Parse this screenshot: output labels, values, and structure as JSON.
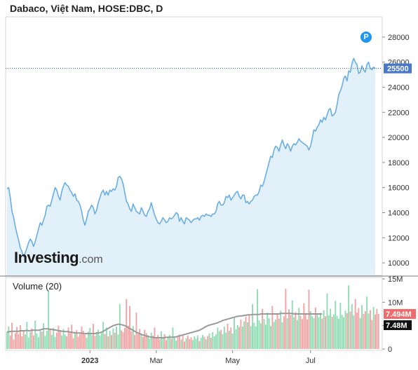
{
  "header": {
    "title": "Dabaco, Việt Nam, HOSE:DBC, D",
    "volume_label": "Volume (20)",
    "badge": "P",
    "logo_main": "Investing",
    "logo_suffix": ".com"
  },
  "colors": {
    "price_line": "#6aaee3",
    "price_fill": "#e2f0fa",
    "last_price_tag": "#4a78c9",
    "volume_up": "#8fdcb4",
    "volume_down": "#f2a3a3",
    "volume_ma": "#9a9a9a",
    "volume_tag_up": "#f06c6c",
    "volume_tag_ma": "#111111"
  },
  "chart_data": [
    {
      "type": "area",
      "name": "price",
      "y_ticks": [
        "28000",
        "26000",
        "24000",
        "22000",
        "20000",
        "18000",
        "16000",
        "14000",
        "12000",
        "10000"
      ],
      "ylim": [
        9000,
        29500
      ],
      "x_ticks": [
        "2023",
        "Mar",
        "May",
        "Jul"
      ],
      "last_price_label": "25500",
      "values": [
        15900,
        16000,
        15200,
        14100,
        13600,
        12900,
        12300,
        11800,
        11200,
        10900,
        10500,
        10800,
        11200,
        11600,
        11900,
        11700,
        11300,
        11700,
        12200,
        12700,
        13200,
        13000,
        13400,
        13800,
        14500,
        14600,
        14500,
        15000,
        15500,
        16000,
        15800,
        15300,
        15000,
        15700,
        16100,
        16400,
        16200,
        16100,
        15800,
        15600,
        15300,
        15500,
        15000,
        14900,
        14600,
        14100,
        13400,
        13000,
        13500,
        14100,
        14300,
        14600,
        14400,
        13900,
        14200,
        14800,
        15200,
        15600,
        15800,
        15400,
        15700,
        15400,
        15800,
        15700,
        15900,
        15800,
        16100,
        16800,
        16900,
        16700,
        16300,
        15600,
        14900,
        14700,
        14300,
        14100,
        14700,
        14400,
        14100,
        14000,
        13900,
        14400,
        14100,
        13800,
        13700,
        14100,
        14300,
        14800,
        14300,
        13800,
        13500,
        13200,
        13100,
        13300,
        13600,
        13400,
        13200,
        13300,
        13600,
        13500,
        13600,
        13800,
        14000,
        13900,
        13300,
        13600,
        13300,
        13100,
        13600,
        13500,
        13400,
        13200,
        13400,
        13500,
        13500,
        13600,
        13400,
        13700,
        13800,
        13700,
        13900,
        13800,
        13800,
        13700,
        13900,
        13900,
        14100,
        14700,
        14900,
        14600,
        14600,
        14800,
        15300,
        15200,
        15400,
        15000,
        15200,
        15400,
        15600,
        15700,
        15300,
        15100,
        15400,
        15400,
        14800,
        14900,
        14700,
        14900,
        15000,
        15300,
        15400,
        15400,
        15700,
        16200,
        16100,
        16500,
        17000,
        17500,
        18000,
        18500,
        18400,
        19000,
        19300,
        19200,
        18900,
        19400,
        19800,
        19400,
        19100,
        19500,
        19300,
        18900,
        19300,
        19500,
        19400,
        19600,
        19900,
        19700,
        19600,
        19500,
        19400,
        19300,
        19000,
        19300,
        19900,
        20600,
        20500,
        20800,
        21000,
        21400,
        21200,
        21600,
        21400,
        21800,
        22200,
        22300,
        21700,
        21800,
        22000,
        22600,
        23400,
        23700,
        24100,
        24700,
        24900,
        24500,
        25300,
        25200,
        25900,
        26300,
        26000,
        25800,
        25100,
        25200,
        25700,
        25400,
        25200,
        25800,
        26000,
        25500,
        25400,
        25600,
        25500
      ]
    },
    {
      "type": "bar",
      "name": "volume",
      "y_ticks": [
        "15M",
        "10M",
        "5M",
        "0"
      ],
      "ylim": [
        0,
        15
      ],
      "x_ticks": [
        "2023",
        "Mar",
        "May",
        "Jul"
      ],
      "volume_tag_label": "7.494M",
      "ma_tag_label": "7.48M",
      "values": [
        3.6,
        4.8,
        2.9,
        5.6,
        2.0,
        3.4,
        4.7,
        3.2,
        5.1,
        2.7,
        4.0,
        3.1,
        5.8,
        2.4,
        3.6,
        4.4,
        2.9,
        6.1,
        3.3,
        2.5,
        4.2,
        3.7,
        5.5,
        2.8,
        3.9,
        12.6,
        4.1,
        3.0,
        4.5,
        2.6,
        3.5,
        5.0,
        3.8,
        2.9,
        4.3,
        3.1,
        2.7,
        4.6,
        3.4,
        5.2,
        2.3,
        3.6,
        4.0,
        2.6,
        3.2,
        4.8,
        3.9,
        3.1,
        2.4,
        3.7,
        4.5,
        3.0,
        5.4,
        2.8,
        3.6,
        4.1,
        2.9,
        3.4,
        5.8,
        3.2,
        4.6,
        2.7,
        3.9,
        3.0,
        4.4,
        3.5,
        4.8,
        3.1,
        9.6,
        4.0,
        3.6,
        4.5,
        10.7,
        5.0,
        9.2,
        3.8,
        4.9,
        3.0,
        7.8,
        3.2,
        4.3,
        3.0,
        2.6,
        4.1,
        3.4,
        2.9,
        2.2,
        3.5,
        2.8,
        4.6,
        2.5,
        3.0,
        2.1,
        3.8,
        2.6,
        3.2,
        1.9,
        2.4,
        3.0,
        2.2,
        4.6,
        2.7,
        1.8,
        2.5,
        3.1,
        2.0,
        2.8,
        1.6,
        2.3,
        2.9,
        2.1,
        2.5,
        1.9,
        2.7,
        2.2,
        2.9,
        1.7,
        2.4,
        3.0,
        2.6,
        2.1,
        2.8,
        3.3,
        2.4,
        3.6,
        2.7,
        3.1,
        4.6,
        3.8,
        4.1,
        3.2,
        4.8,
        3.5,
        5.4,
        3.9,
        4.6,
        3.3,
        6.8,
        4.2,
        5.1,
        4.7,
        6.3,
        4.8,
        5.9,
        6.9,
        5.7,
        7.2,
        4.9,
        9.6,
        5.6,
        4.8,
        12.8,
        6.1,
        5.5,
        8.6,
        6.4,
        5.2,
        7.8,
        6.6,
        4.9,
        9.2,
        5.8,
        6.3,
        7.6,
        6.5,
        8.2,
        5.7,
        7.0,
        12.9,
        6.6,
        8.5,
        7.3,
        10.4,
        6.8,
        7.9,
        6.2,
        8.8,
        7.1,
        6.4,
        9.8,
        7.5,
        6.3,
        12.7,
        8.1,
        7.0,
        6.6,
        8.9,
        7.4,
        6.8,
        7.7,
        6.5,
        8.3,
        7.0,
        11.9,
        7.2,
        8.6,
        6.9,
        7.4,
        10.3,
        7.1,
        6.5,
        9.9,
        7.3,
        6.8,
        8.2,
        7.7,
        13.6,
        8.0,
        9.6,
        7.2,
        10.7,
        7.8,
        8.8,
        6.6,
        9.4,
        7.5,
        8.1,
        11.2,
        7.6,
        8.3,
        6.2,
        9.0,
        7.4,
        8.6,
        7.494
      ],
      "moving_average_20": [
        3.6,
        3.7,
        3.7,
        3.8,
        3.8,
        3.8,
        3.8,
        3.8,
        3.9,
        3.9,
        3.9,
        3.9,
        4.0,
        3.9,
        3.9,
        4.0,
        4.0,
        4.0,
        4.0,
        4.0,
        4.1,
        4.2,
        4.3,
        4.3,
        4.3,
        4.3,
        4.2,
        4.2,
        4.1,
        4.1,
        4.0,
        3.9,
        3.9,
        3.8,
        3.8,
        3.7,
        3.7,
        3.7,
        3.6,
        3.6,
        3.5,
        3.5,
        3.4,
        3.4,
        3.4,
        3.4,
        3.3,
        3.3,
        3.3,
        3.3,
        3.3,
        3.3,
        3.3,
        3.3,
        3.4,
        3.4,
        3.5,
        3.6,
        3.8,
        4.0,
        4.2,
        4.4,
        4.6,
        4.8,
        5.0,
        5.1,
        5.2,
        5.3,
        5.3,
        5.2,
        5.1,
        5.0,
        4.8,
        4.6,
        4.4,
        4.2,
        4.0,
        3.8,
        3.6,
        3.4,
        3.3,
        3.1,
        3.0,
        2.9,
        2.8,
        2.7,
        2.6,
        2.5,
        2.5,
        2.4,
        2.4,
        2.4,
        2.4,
        2.4,
        2.4,
        2.4,
        2.5,
        2.5,
        2.5,
        2.5,
        2.5,
        2.6,
        2.6,
        2.7,
        2.8,
        2.9,
        3.0,
        3.1,
        3.2,
        3.3,
        3.4,
        3.5,
        3.6,
        3.7,
        3.8,
        3.9,
        4.0,
        4.2,
        4.4,
        4.6,
        4.8,
        5.0,
        5.1,
        5.2,
        5.3,
        5.4,
        5.5,
        5.6,
        5.8,
        5.9,
        6.1,
        6.2,
        6.3,
        6.4,
        6.5,
        6.6,
        6.7,
        6.8,
        6.9,
        7.0,
        7.0,
        7.1,
        7.1,
        7.2,
        7.2,
        7.3,
        7.3,
        7.3,
        7.4,
        7.4,
        7.4,
        7.4,
        7.4,
        7.5,
        7.5,
        7.5,
        7.5,
        7.5,
        7.5,
        7.5,
        7.5,
        7.5,
        7.5,
        7.5,
        7.5,
        7.6,
        7.6,
        7.6,
        7.6,
        7.6,
        7.6,
        7.6,
        7.6,
        7.5,
        7.5,
        7.5,
        7.5,
        7.5,
        7.5,
        7.5,
        7.5,
        7.5,
        7.5,
        7.5,
        7.5,
        7.5,
        7.5,
        7.5,
        7.5,
        7.5,
        7.48
      ]
    }
  ]
}
